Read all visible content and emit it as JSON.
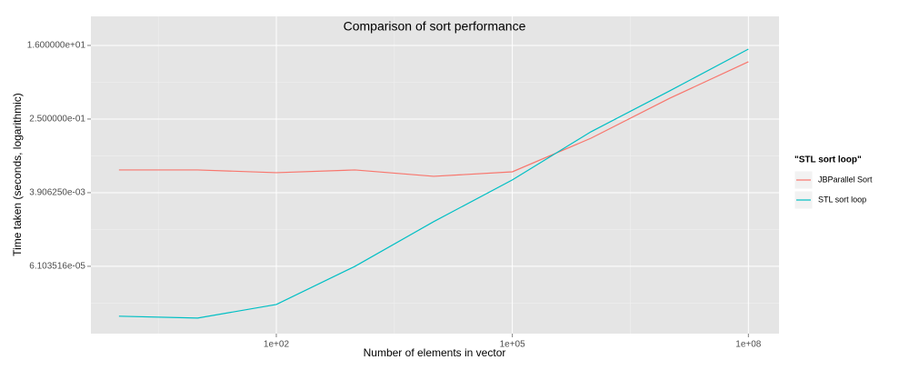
{
  "chart_data": {
    "type": "line",
    "title": "Comparison of sort performance",
    "x_label": "Number  of elements in vector",
    "y_label": "Time taken (seconds, logarithmic)",
    "log_x": true,
    "log_y": true,
    "grid": true,
    "legend_title": "\"STL sort loop\"",
    "legend_position": "right",
    "x": [
      1,
      10,
      100,
      1000,
      10000,
      100000,
      1000000,
      10000000,
      100000000
    ],
    "series": [
      {
        "name": "JBParallel Sort",
        "color": "#F8766D",
        "values": [
          0.0141,
          0.0141,
          0.0121,
          0.0141,
          0.00984,
          0.0127,
          0.0848,
          0.81,
          6.35
        ]
      },
      {
        "name": "STL sort loop",
        "color": "#00BFC4",
        "values": [
          3.64e-06,
          3.28e-06,
          7.05e-06,
          6.1e-05,
          0.00076,
          0.00805,
          0.122,
          1.23,
          13.0
        ]
      }
    ],
    "xlim": [
      0.44,
      245000000
    ],
    "ylim": [
      1.36e-06,
      82.6
    ],
    "xticks": [
      {
        "value": 100,
        "label": "1e+02"
      },
      {
        "value": 100000,
        "label": "1e+05"
      },
      {
        "value": 100000000,
        "label": "1e+08"
      }
    ],
    "yticks": [
      {
        "value": 6.103516e-05,
        "label": "6.103516e-05"
      },
      {
        "value": 0.00390625,
        "label": "3.906250e-03"
      },
      {
        "value": 0.25,
        "label": "2.500000e-01"
      },
      {
        "value": 16,
        "label": "1.600000e+01"
      }
    ]
  }
}
